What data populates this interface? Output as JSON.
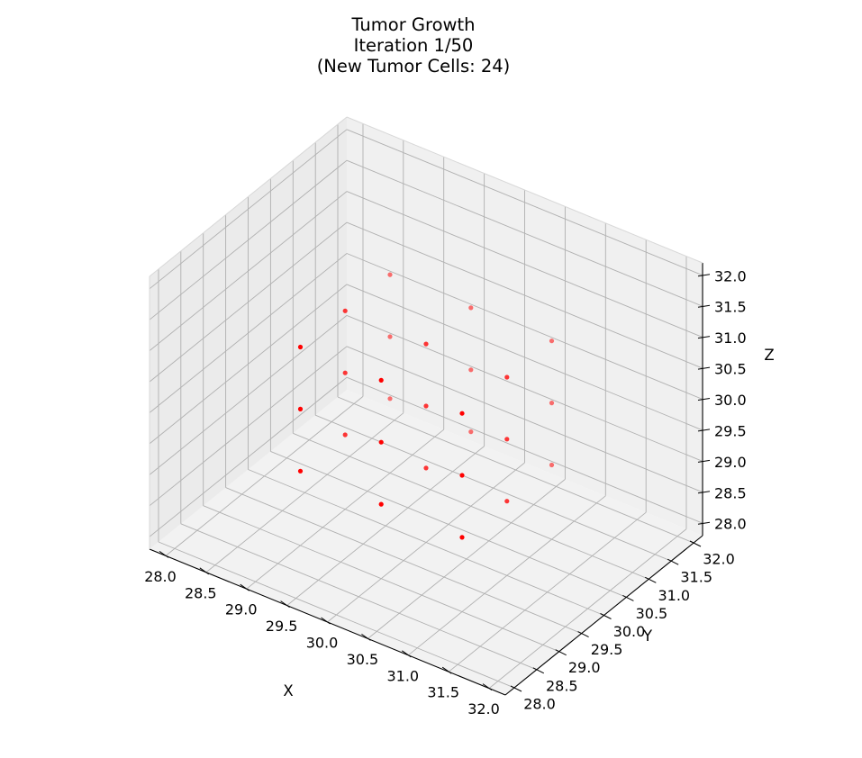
{
  "chart_data": {
    "type": "scatter",
    "projection": "3d",
    "title": [
      "Tumor Growth",
      "Iteration 1/50",
      "(New Tumor Cells: 24)"
    ],
    "xlabel": "X",
    "ylabel": "Y",
    "zlabel": "Z",
    "xlim": [
      27.8,
      32.2
    ],
    "ylim": [
      27.8,
      32.2
    ],
    "zlim": [
      27.8,
      32.2
    ],
    "xticks": [
      "28.0",
      "28.5",
      "29.0",
      "29.5",
      "30.0",
      "30.5",
      "31.0",
      "31.5",
      "32.0"
    ],
    "yticks": [
      "28.0",
      "28.5",
      "29.0",
      "29.5",
      "30.0",
      "30.5",
      "31.0",
      "31.5",
      "32.0"
    ],
    "zticks": [
      "28.0",
      "28.5",
      "29.0",
      "29.5",
      "30.0",
      "30.5",
      "31.0",
      "31.5",
      "32.0"
    ],
    "grid": true,
    "marker_color": "#ff0000",
    "points": {
      "x": [
        29,
        29,
        29,
        29,
        29,
        29,
        29,
        29,
        29,
        30,
        30,
        30,
        30,
        30,
        30,
        30,
        30,
        30,
        31,
        31,
        31,
        31,
        31,
        31,
        31,
        31,
        31
      ],
      "y": [
        29,
        29,
        29,
        30,
        30,
        30,
        31,
        31,
        31,
        29,
        29,
        29,
        30,
        30,
        30,
        31,
        31,
        31,
        29,
        29,
        29,
        30,
        30,
        30,
        31,
        31,
        31
      ],
      "z": [
        29,
        30,
        31,
        29,
        30,
        31,
        29,
        30,
        31,
        29,
        30,
        31,
        29,
        30,
        31,
        29,
        30,
        31,
        29,
        30,
        31,
        29,
        30,
        31,
        29,
        30,
        31
      ]
    }
  }
}
